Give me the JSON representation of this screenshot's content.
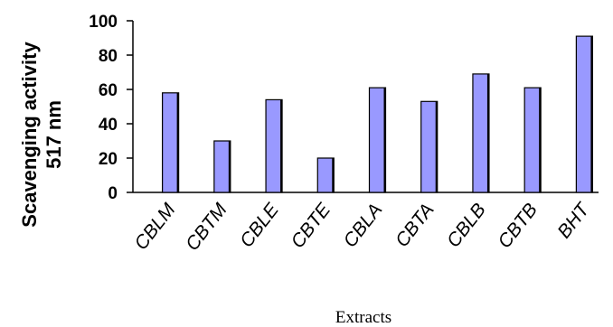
{
  "chart_data": {
    "type": "bar",
    "categories": [
      "CBLM",
      "CBTM",
      "CBLE",
      "CBTE",
      "CBLA",
      "CBTA",
      "CBLB",
      "CBTB",
      "BHT"
    ],
    "values": [
      58,
      30,
      54,
      20,
      61,
      53,
      69,
      61,
      91
    ],
    "ylabel": [
      "Scavenging activity",
      "517 nm"
    ],
    "xlabel": "Extracts",
    "ylim": [
      0,
      100
    ],
    "yticks": [
      0,
      20,
      40,
      60,
      80,
      100
    ],
    "grid": false,
    "legend": "none",
    "bar_color": "#9999ff",
    "bar_edge_color": "#000000"
  }
}
